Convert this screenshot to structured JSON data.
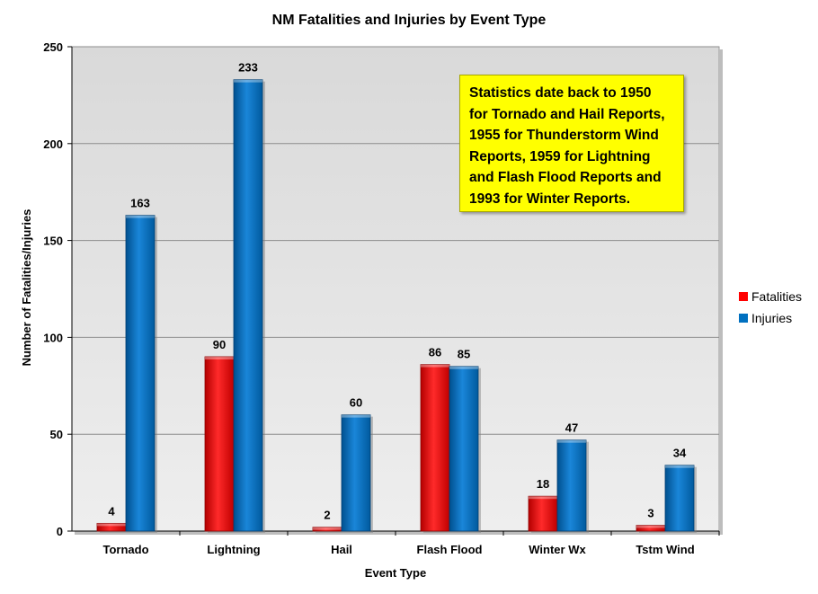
{
  "chart_data": {
    "type": "bar",
    "title": "NM Fatalities and Injuries by Event Type",
    "xlabel": "Event Type",
    "ylabel": "Number of Fatalities/Injuries",
    "categories": [
      "Tornado",
      "Lightning",
      "Hail",
      "Flash Flood",
      "Winter Wx",
      "Tstm Wind"
    ],
    "series": [
      {
        "name": "Fatalities",
        "color": "#ff0000",
        "values": [
          4,
          90,
          2,
          86,
          18,
          3
        ]
      },
      {
        "name": "Injuries",
        "color": "#0070c0",
        "values": [
          163,
          233,
          60,
          85,
          47,
          34
        ]
      }
    ],
    "ylim": [
      0,
      250
    ],
    "yticks": [
      0,
      50,
      100,
      150,
      200,
      250
    ],
    "grid": true,
    "legend": "right",
    "plot_background": "#e6e6e6",
    "annotation": {
      "lines": [
        "Statistics date back to 1950",
        "for Tornado and Hail Reports,",
        "1955 for Thunderstorm Wind",
        "Reports, 1959 for Lightning",
        "and Flash Flood Reports and",
        "1993 for Winter Reports."
      ],
      "background": "#ffff00"
    }
  }
}
